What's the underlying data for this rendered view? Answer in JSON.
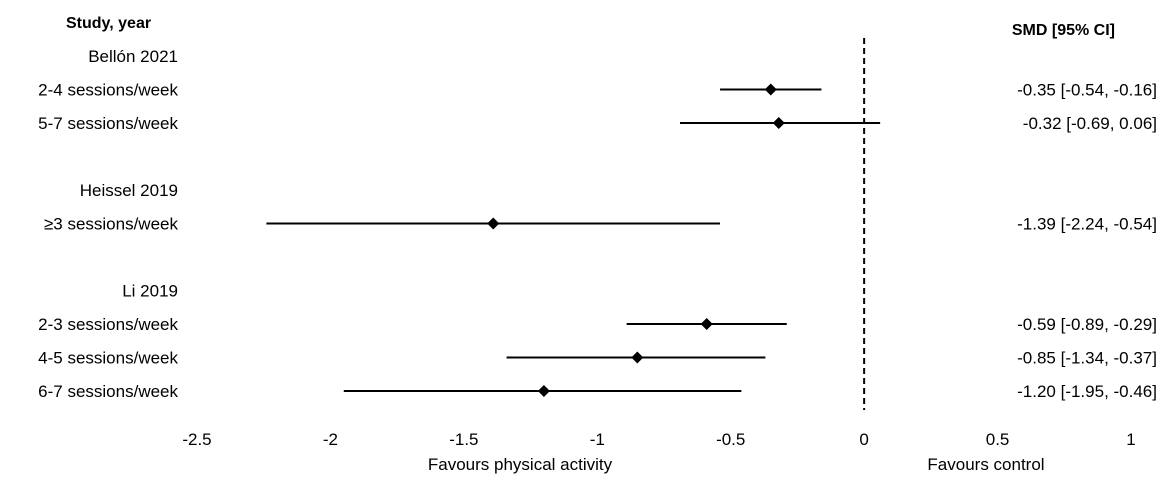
{
  "header": {
    "left": "Study, year",
    "right": "SMD [95% CI]"
  },
  "chart_data": {
    "type": "forest",
    "xlim": [
      -2.5,
      1
    ],
    "xticks": [
      -2.5,
      -2,
      -1.5,
      -1,
      -0.5,
      0,
      0.5,
      1
    ],
    "xtick_labels": [
      "-2.5",
      "-2",
      "-1.5",
      "-1",
      "-0.5",
      "0",
      "0.5",
      "1"
    ],
    "reference_line": 0,
    "favours_left": "Favours physical activity",
    "favours_right": "Favours control",
    "rows": [
      {
        "kind": "group",
        "label": "Bellón 2021"
      },
      {
        "kind": "study",
        "label": "2-4 sessions/week",
        "est": -0.35,
        "lo": -0.54,
        "hi": -0.16,
        "ci_text": "-0.35 [-0.54, -0.16]"
      },
      {
        "kind": "study",
        "label": "5-7 sessions/week",
        "est": -0.32,
        "lo": -0.69,
        "hi": 0.06,
        "ci_text": "-0.32 [-0.69, 0.06]"
      },
      {
        "kind": "blank"
      },
      {
        "kind": "group",
        "label": "Heissel 2019"
      },
      {
        "kind": "study",
        "label": "≥3 sessions/week",
        "est": -1.39,
        "lo": -2.24,
        "hi": -0.54,
        "ci_text": "-1.39 [-2.24, -0.54]"
      },
      {
        "kind": "blank"
      },
      {
        "kind": "group",
        "label": "Li 2019"
      },
      {
        "kind": "study",
        "label": "2-3 sessions/week",
        "est": -0.59,
        "lo": -0.89,
        "hi": -0.29,
        "ci_text": "-0.59 [-0.89, -0.29]"
      },
      {
        "kind": "study",
        "label": "4-5 sessions/week",
        "est": -0.85,
        "lo": -1.34,
        "hi": -0.37,
        "ci_text": "-0.85 [-1.34, -0.37]"
      },
      {
        "kind": "study",
        "label": "6-7 sessions/week",
        "est": -1.2,
        "lo": -1.95,
        "hi": -0.46,
        "ci_text": "-1.20 [-1.95, -0.46]"
      }
    ]
  }
}
